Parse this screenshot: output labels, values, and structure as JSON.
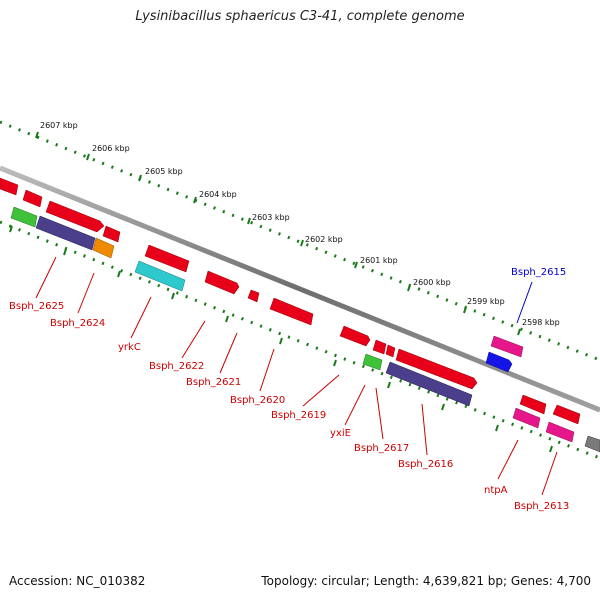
{
  "title": "Lysinibacillus sphaericus C3-41, complete genome",
  "accession": "Accession: NC_010382",
  "summary": "Topology: circular; Length: 4,639,821 bp; Genes: 4,700",
  "scale_labels": [
    "2607 kbp",
    "2606 kbp",
    "2605 kbp",
    "2604 kbp",
    "2603 kbp",
    "2602 kbp",
    "2601 kbp",
    "2600 kbp",
    "2599 kbp",
    "2598 kbp"
  ],
  "gene_labels": [
    "Bsph_2625",
    "Bsph_2624",
    "yrkC",
    "Bsph_2622",
    "Bsph_2621",
    "Bsph_2620",
    "Bsph_2619",
    "yxiE",
    "Bsph_2617",
    "Bsph_2616",
    "ntpA",
    "Bsph_2613",
    "Bsph_2615"
  ],
  "colors": {
    "red": "#e8001a",
    "navy": "#4b3f8c",
    "orange": "#f08a00",
    "cyan": "#2ec9cc",
    "green": "#3fc23a",
    "pink": "#e6178a",
    "blue": "#1414e6",
    "gray": "#7a7a7a",
    "tick": "#1a7a1a",
    "label_red": "#cc0000",
    "label_blue": "#0000cc"
  }
}
